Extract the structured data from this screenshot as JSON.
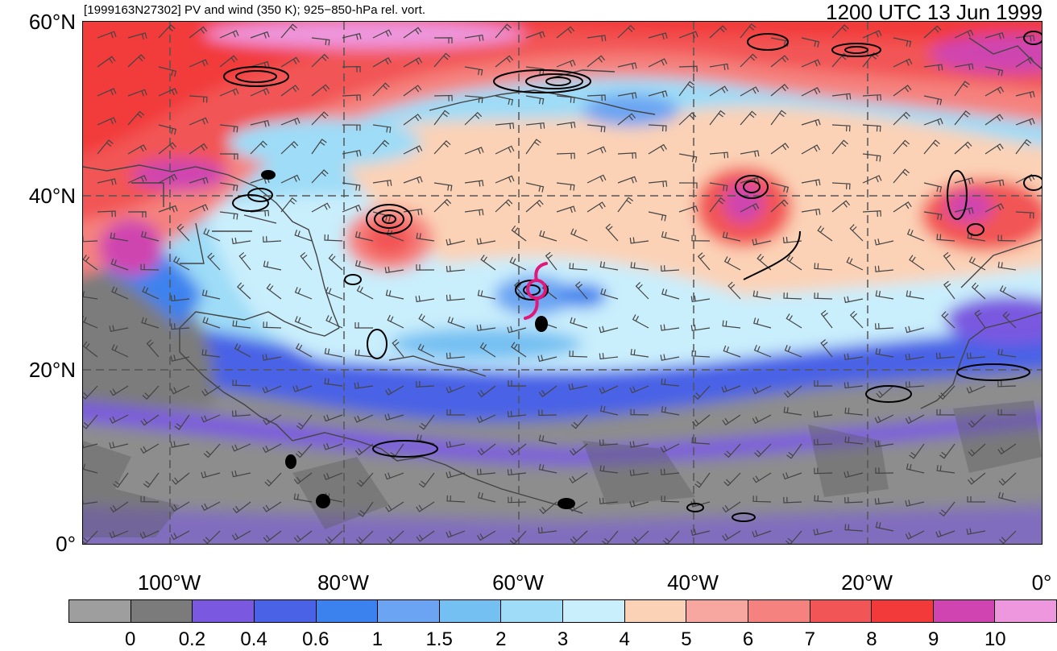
{
  "header": {
    "left_text": "[1999163N27302] PV and wind (350 K); 925−850-hPa rel. vort.",
    "right_text": "1200 UTC 13 Jun 1999"
  },
  "axes": {
    "lat_labels": [
      "60°N",
      "40°N",
      "20°N",
      "0°"
    ],
    "lon_labels": [
      "100°W",
      "80°W",
      "60°W",
      "40°W",
      "20°W",
      "0°"
    ]
  },
  "colorbar": {
    "colors": [
      "#9e9e9e",
      "#7b7b7b",
      "#7a58e0",
      "#4a62e6",
      "#3c82ee",
      "#6aa4f2",
      "#74c0f2",
      "#9edcf7",
      "#c9eefc",
      "#fbd2b6",
      "#f8a7a0",
      "#f5827e",
      "#f25555",
      "#f23a3a",
      "#cf44b0",
      "#ee96de"
    ],
    "labels": [
      "0",
      "0.2",
      "0.4",
      "0.6",
      "1",
      "1.5",
      "2",
      "3",
      "4",
      "5",
      "6",
      "7",
      "8",
      "9",
      "10"
    ]
  },
  "storm_marker": {
    "color": "#e0187a",
    "symbol": "tropical-storm-icon"
  }
}
